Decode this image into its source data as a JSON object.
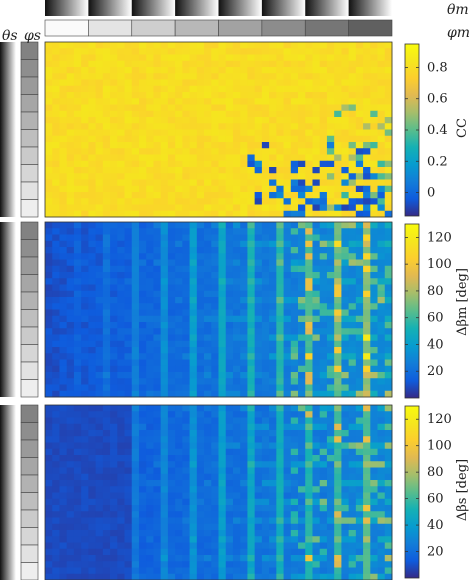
{
  "labels": {
    "theta_m": "θm",
    "phi_m": "φm",
    "theta_s": "θs",
    "phi_s": "φs"
  },
  "chart_data": [
    {
      "type": "heatmap",
      "colormap": "parula",
      "colorbar_label": "CC",
      "zlim": [
        -0.15,
        0.95
      ],
      "colorbar_ticks": [
        0,
        0.2,
        0.4,
        0.6,
        0.8
      ],
      "description_values": "mostly ~0.85 (yellow); patches near 0 toward lower-right"
    },
    {
      "type": "heatmap",
      "colormap": "parula",
      "colorbar_label": "Δβm [deg]",
      "zlim": [
        0,
        130
      ],
      "colorbar_ticks": [
        20,
        40,
        60,
        80,
        100,
        120
      ]
    },
    {
      "type": "heatmap",
      "colormap": "parula",
      "colorbar_label": "Δβs [deg]",
      "zlim": [
        0,
        130
      ],
      "colorbar_ticks": [
        20,
        40,
        60,
        80,
        100,
        120
      ]
    }
  ],
  "colors": {
    "parula_low": "#352a87",
    "parula_mid": "#1fb3a7",
    "parula_high": "#f9fb0e"
  }
}
